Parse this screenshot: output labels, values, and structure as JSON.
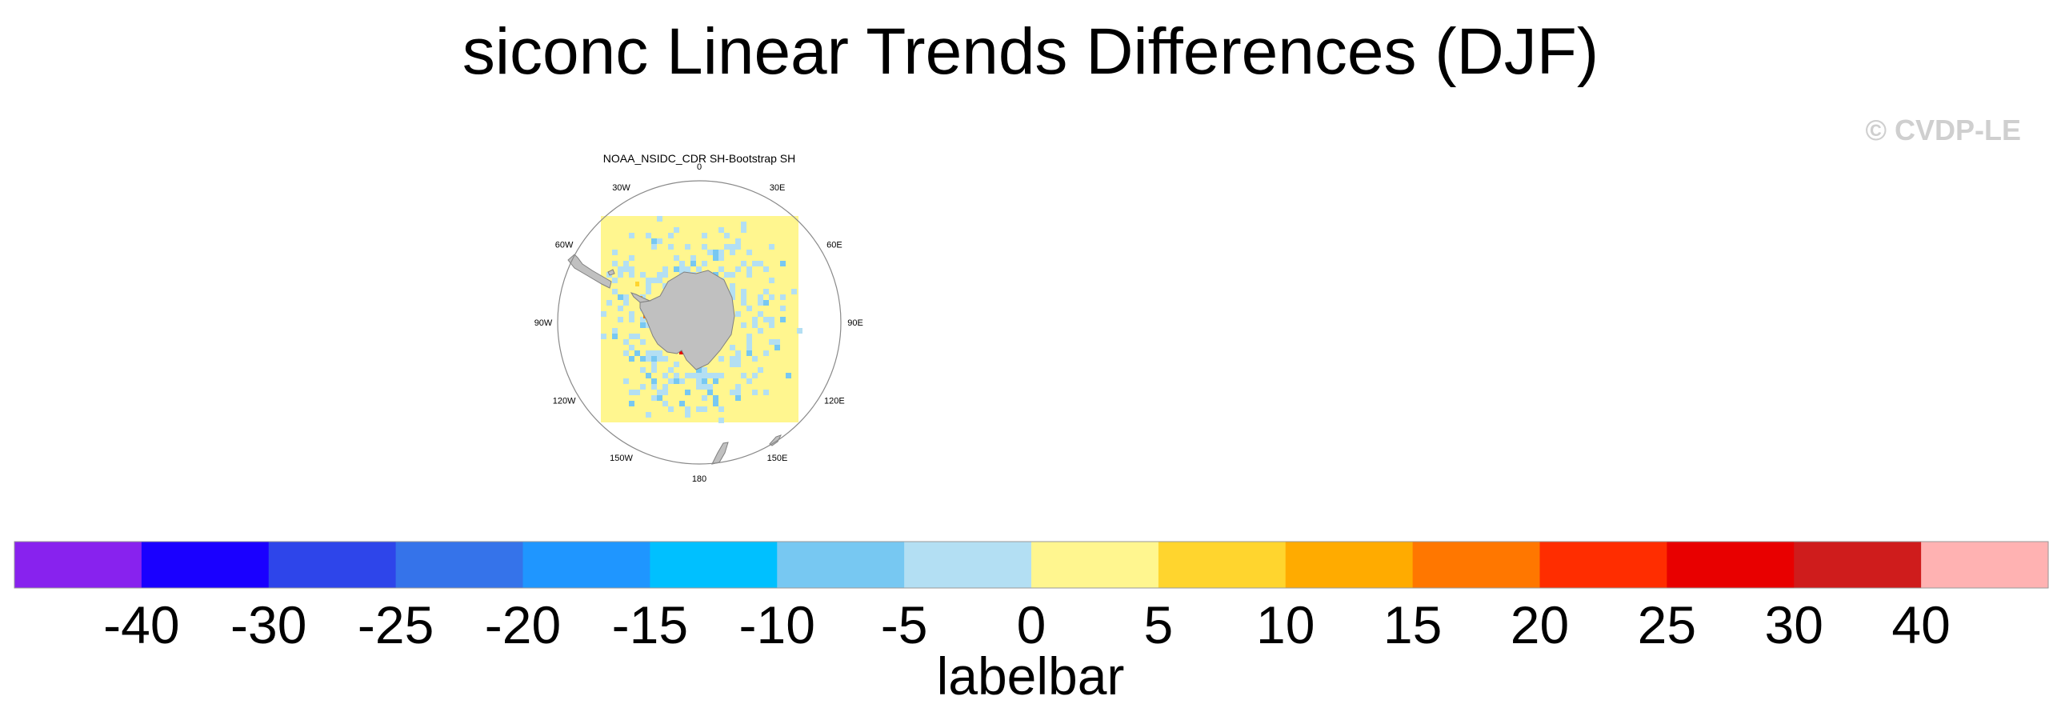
{
  "title": "siconc Linear Trends Differences (DJF)",
  "watermark": "© CVDP-LE",
  "chart_data": {
    "type": "heatmap",
    "title": "siconc Linear Trends Differences (DJF)",
    "panel_title": "NOAA_NSIDC_CDR SH-Bootstrap SH",
    "projection": "south-polar-stereographic",
    "longitude_labels": [
      "0",
      "30E",
      "60E",
      "90E",
      "120E",
      "150E",
      "180",
      "150W",
      "120W",
      "90W",
      "60W",
      "30W"
    ],
    "field_summary": "Mostly 0 to 5 over the ocean domain, scattered -5 to 0 cells in a ring around Antarctica, isolated positive cells near the Antarctic Peninsula",
    "colorbar": {
      "label": "labelbar",
      "tick_labels": [
        "-40",
        "-30",
        "-25",
        "-20",
        "-15",
        "-10",
        "-5",
        "0",
        "5",
        "10",
        "15",
        "20",
        "25",
        "30",
        "40"
      ],
      "colors": [
        "#8822ee",
        "#1a00ff",
        "#2e45ea",
        "#3573ea",
        "#1f96ff",
        "#00c0ff",
        "#77c8f2",
        "#b3dff3",
        "#fff68f",
        "#ffd52e",
        "#ffab00",
        "#ff7700",
        "#ff2d00",
        "#e80000",
        "#cf1c1c",
        "#ffb2b2"
      ]
    },
    "colors": {
      "land": "#c0c0c0",
      "ocean_background": "#ffffff"
    }
  }
}
